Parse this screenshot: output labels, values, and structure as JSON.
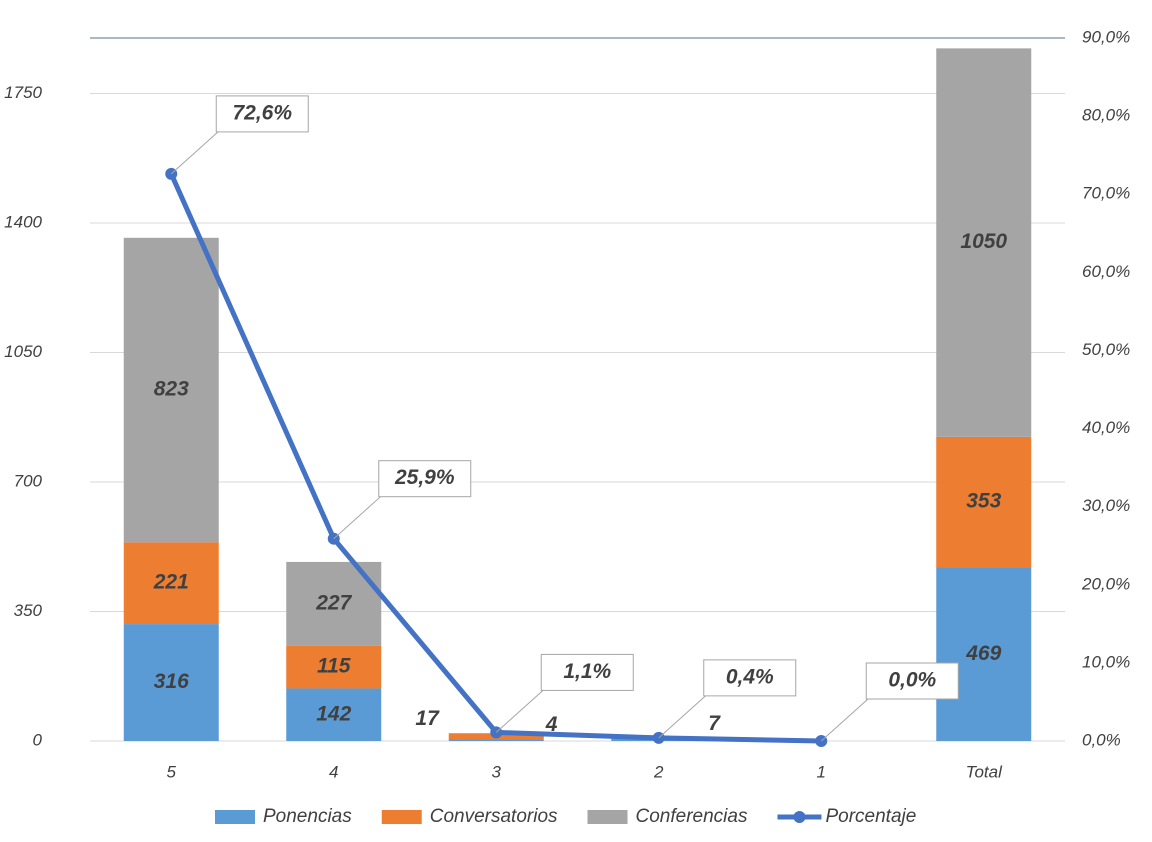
{
  "chart_data": {
    "type": "bar",
    "categories": [
      "5",
      "4",
      "3",
      "2",
      "1",
      "Total"
    ],
    "series": [
      {
        "name": "Ponencias",
        "color": "#5b9bd5",
        "values": [
          316,
          142,
          4,
          7,
          0,
          469
        ]
      },
      {
        "name": "Conversatorios",
        "color": "#ed7d31",
        "values": [
          221,
          115,
          17,
          0,
          0,
          353
        ]
      },
      {
        "name": "Conferencias",
        "color": "#a5a5a5",
        "values": [
          823,
          227,
          0,
          0,
          0,
          1050
        ]
      },
      {
        "name": "Porcentaje",
        "type": "line",
        "axis": "y2",
        "color": "#4472c4",
        "values": [
          72.6,
          25.9,
          1.1,
          0.4,
          0.0,
          null
        ],
        "value_labels": [
          "72,6%",
          "25,9%",
          "1,1%",
          "0,4%",
          "0,0%",
          null
        ]
      }
    ],
    "ylim": [
      0,
      1900
    ],
    "yticks": [
      0,
      350,
      700,
      1050,
      1400,
      1750
    ],
    "y2lim": [
      0,
      90
    ],
    "y2ticks": [
      {
        "value": 0,
        "label": "0,0%"
      },
      {
        "value": 10,
        "label": "10,0%"
      },
      {
        "value": 20,
        "label": "20,0%"
      },
      {
        "value": 30,
        "label": "30,0%"
      },
      {
        "value": 40,
        "label": "40,0%"
      },
      {
        "value": 50,
        "label": "50,0%"
      },
      {
        "value": 60,
        "label": "60,0%"
      },
      {
        "value": 70,
        "label": "70,0%"
      },
      {
        "value": 80,
        "label": "80,0%"
      },
      {
        "value": 90,
        "label": "90,0%"
      }
    ],
    "grid": true,
    "legend": "bottom"
  }
}
